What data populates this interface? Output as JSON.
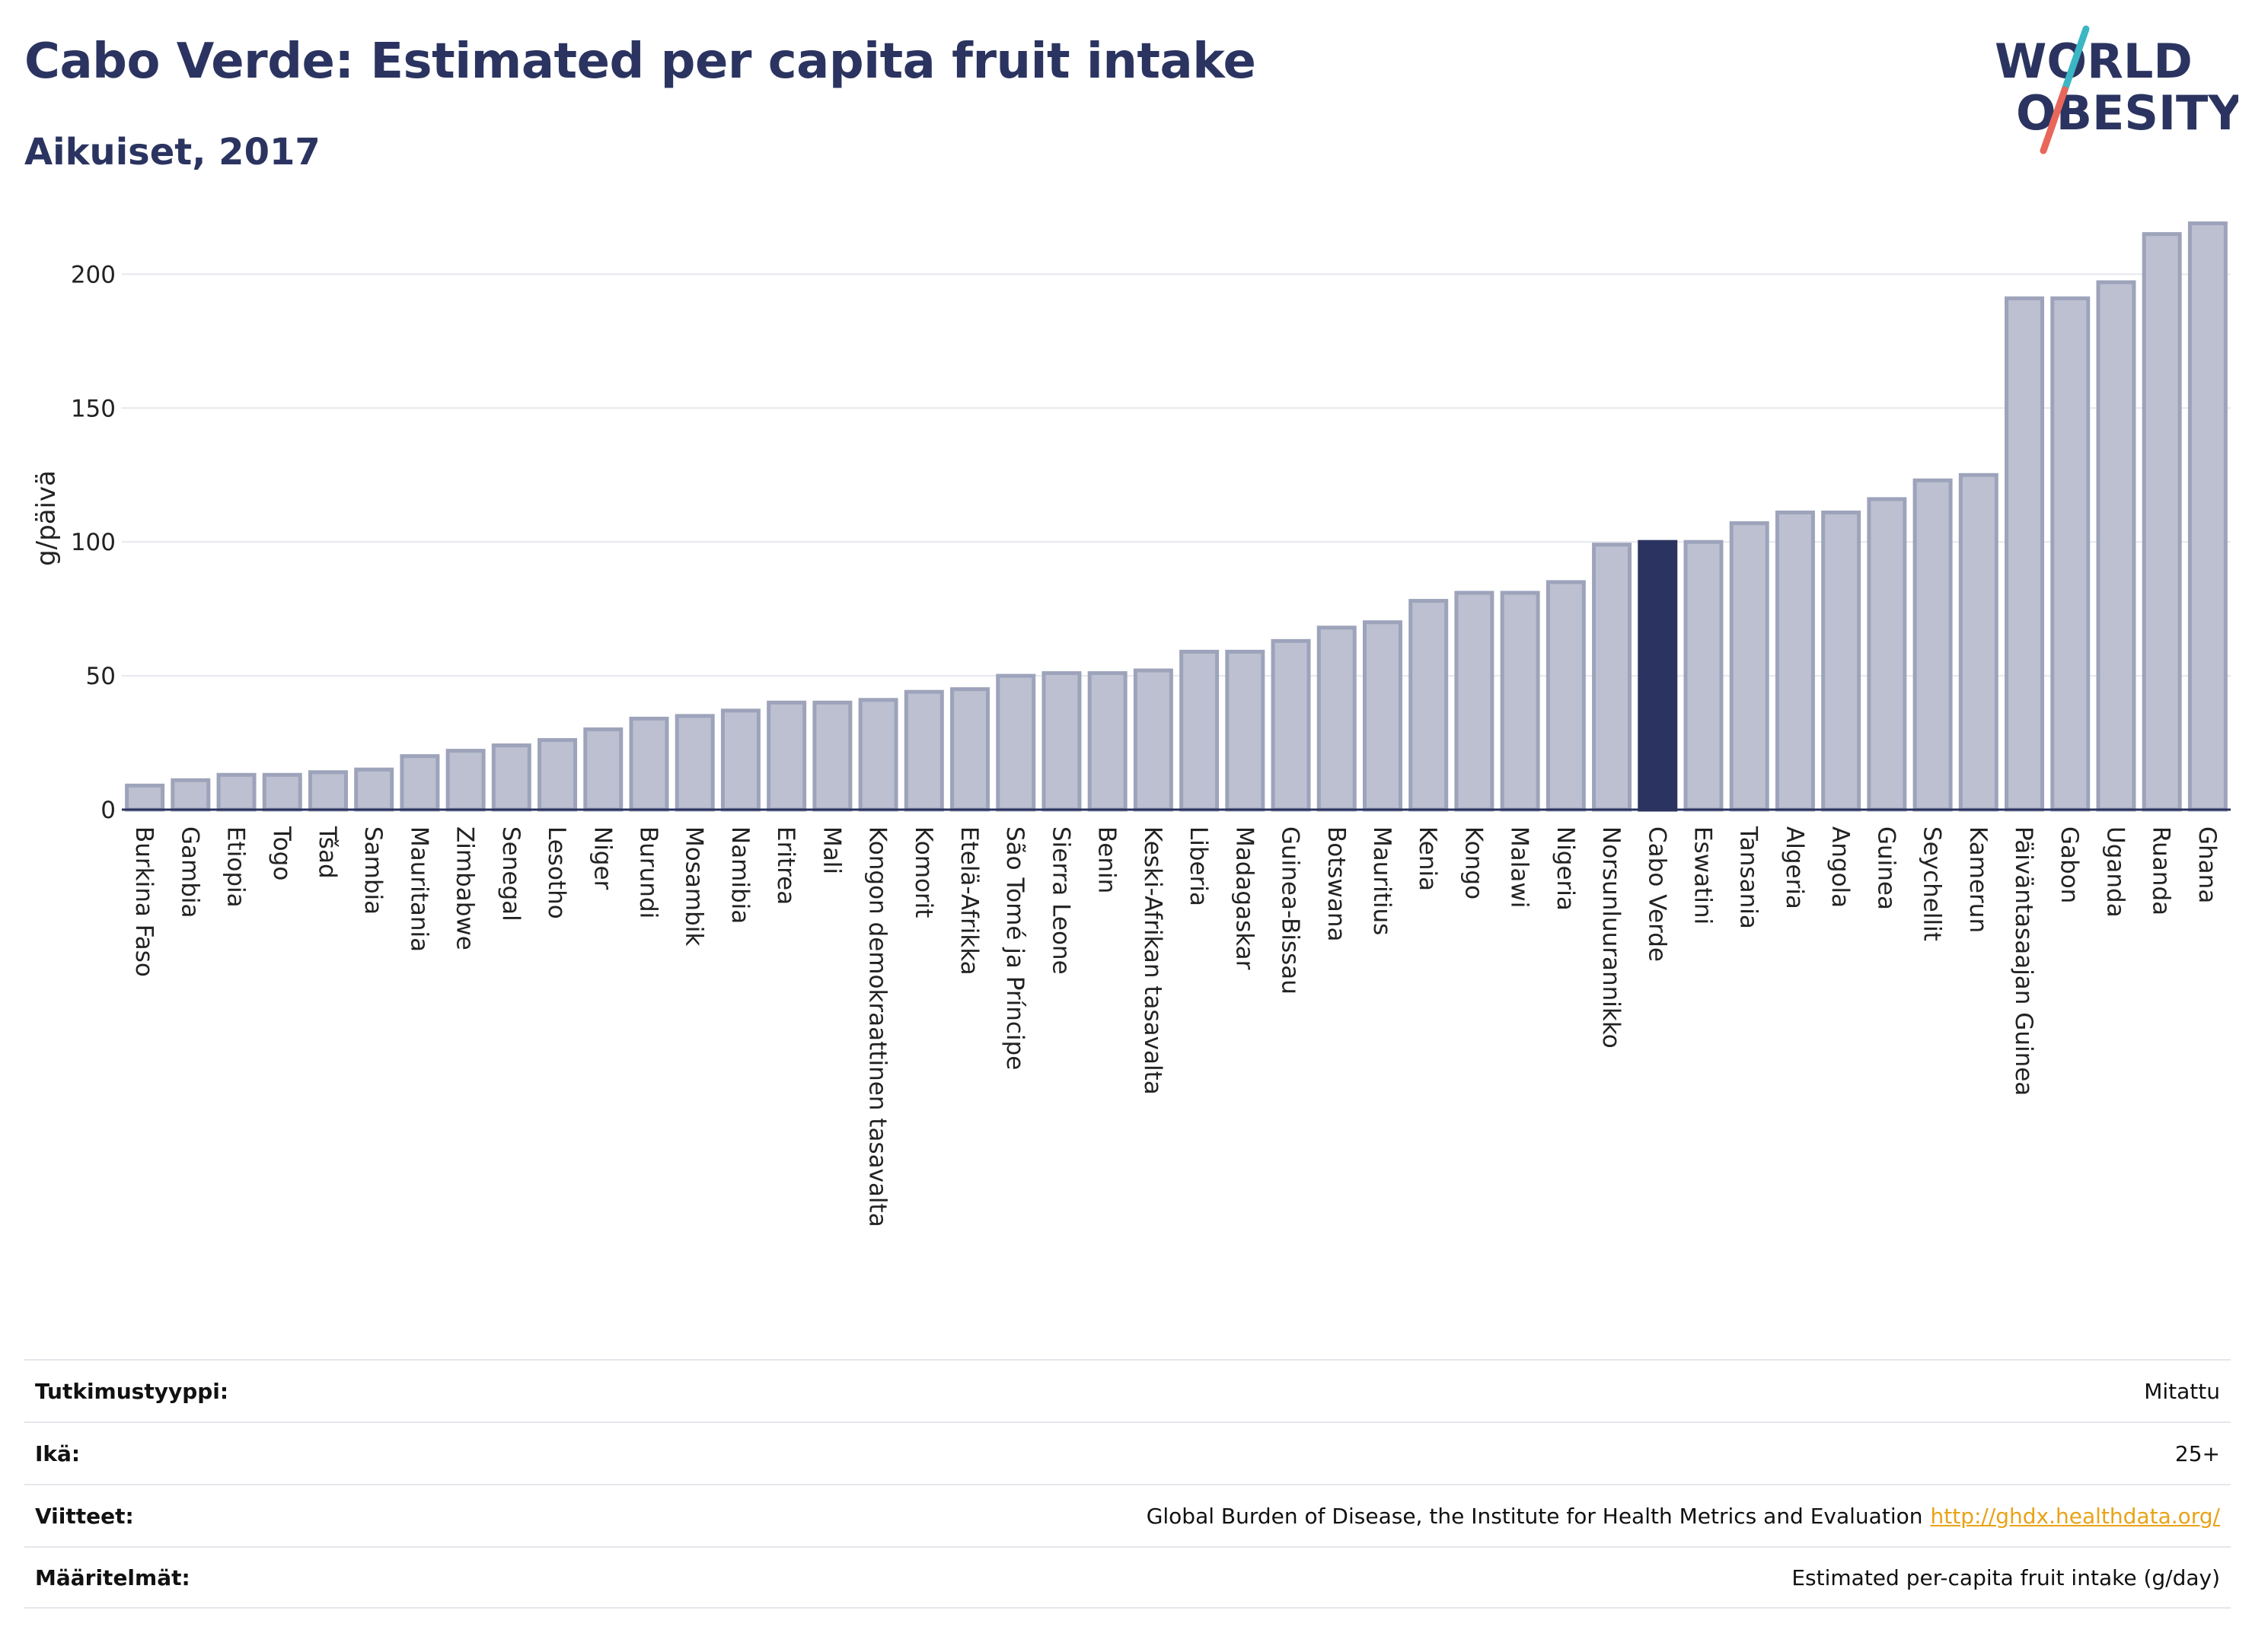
{
  "header": {
    "title": "Cabo Verde: Estimated per capita fruit intake",
    "subtitle": "Aikuiset, 2017"
  },
  "logo": {
    "line1": "WORLD",
    "line2": "OBESITY",
    "colors": {
      "text": "#2b3460",
      "slash_teal": "#3bb6c4",
      "slash_coral": "#e8675a"
    }
  },
  "colors": {
    "bar_default": "#bcc0d0",
    "bar_outline": "#9da3ba",
    "bar_highlight": "#2b3460",
    "grid": "#e6e8ee",
    "axis": "#2b3460"
  },
  "chart_data": {
    "type": "bar",
    "ylabel": "g/päivä",
    "ylim": [
      0,
      220
    ],
    "yticks": [
      0,
      50,
      100,
      150,
      200
    ],
    "grid": true,
    "highlight": "Cabo Verde",
    "categories": [
      "Burkina Faso",
      "Gambia",
      "Etiopia",
      "Togo",
      "Tšad",
      "Sambia",
      "Mauritania",
      "Zimbabwe",
      "Senegal",
      "Lesotho",
      "Niger",
      "Burundi",
      "Mosambik",
      "Namibia",
      "Eritrea",
      "Mali",
      "Kongon demokraattinen tasavalta",
      "Komorit",
      "Etelä-Afrikka",
      "São Tomé ja Príncipe",
      "Sierra Leone",
      "Benin",
      "Keski-Afrikan tasavalta",
      "Liberia",
      "Madagaskar",
      "Guinea-Bissau",
      "Botswana",
      "Mauritius",
      "Kenia",
      "Kongo",
      "Malawi",
      "Nigeria",
      "Norsunluurannikko",
      "Cabo Verde",
      "Eswatini",
      "Tansania",
      "Algeria",
      "Angola",
      "Guinea",
      "Seychellit",
      "Kamerun",
      "Päiväntasaajan Guinea",
      "Gabon",
      "Uganda",
      "Ruanda",
      "Ghana"
    ],
    "values": [
      9,
      11,
      13,
      13,
      14,
      15,
      20,
      22,
      24,
      26,
      30,
      34,
      35,
      37,
      40,
      40,
      41,
      44,
      45,
      50,
      51,
      51,
      52,
      59,
      59,
      63,
      68,
      70,
      78,
      81,
      81,
      85,
      99,
      100,
      100,
      107,
      111,
      111,
      116,
      123,
      125,
      191,
      191,
      197,
      215,
      219
    ]
  },
  "meta": [
    {
      "label": "Tutkimustyyppi:",
      "value": "Mitattu"
    },
    {
      "label": "Ikä:",
      "value": "25+"
    },
    {
      "label": "Viitteet:",
      "value": "Global Burden of Disease, the Institute for Health Metrics and Evaluation",
      "link": "http://ghdx.healthdata.org/"
    },
    {
      "label": "Määritelmät:",
      "value": "Estimated per-capita fruit intake (g/day)"
    }
  ]
}
